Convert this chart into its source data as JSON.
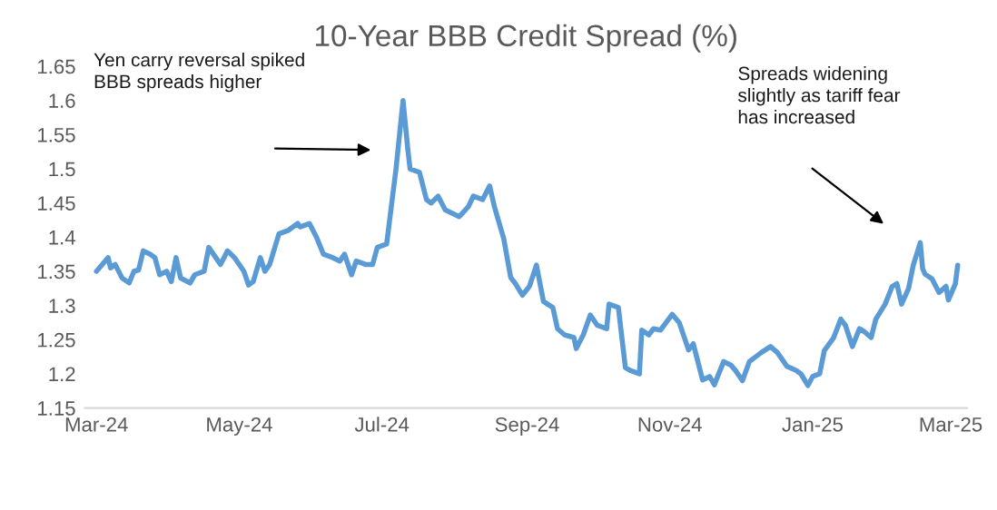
{
  "chart_data": {
    "type": "line",
    "title": "10-Year BBB Credit Spread (%)",
    "series": [
      {
        "color": "#5b9bd5",
        "x": [
          "2024-03-01",
          "2024-03-06",
          "2024-03-07",
          "2024-03-09",
          "2024-03-12",
          "2024-03-15",
          "2024-03-17",
          "2024-03-19",
          "2024-03-21",
          "2024-03-24",
          "2024-03-26",
          "2024-03-28",
          "2024-03-31",
          "2024-04-02",
          "2024-04-04",
          "2024-04-06",
          "2024-04-10",
          "2024-04-12",
          "2024-04-16",
          "2024-04-18",
          "2024-04-21",
          "2024-04-23",
          "2024-04-26",
          "2024-04-29",
          "2024-05-03",
          "2024-05-05",
          "2024-05-07",
          "2024-05-10",
          "2024-05-12",
          "2024-05-14",
          "2024-05-18",
          "2024-05-22",
          "2024-05-26",
          "2024-05-27",
          "2024-05-31",
          "2024-06-03",
          "2024-06-06",
          "2024-06-10",
          "2024-06-13",
          "2024-06-15",
          "2024-06-18",
          "2024-06-20",
          "2024-06-24",
          "2024-06-27",
          "2024-06-29",
          "2024-07-03",
          "2024-07-07",
          "2024-07-10",
          "2024-07-12",
          "2024-07-13",
          "2024-07-17",
          "2024-07-20",
          "2024-07-22",
          "2024-07-25",
          "2024-07-28",
          "2024-07-31",
          "2024-08-03",
          "2024-08-07",
          "2024-08-09",
          "2024-08-13",
          "2024-08-16",
          "2024-08-18",
          "2024-08-22",
          "2024-08-25",
          "2024-08-27",
          "2024-08-30",
          "2024-09-02",
          "2024-09-05",
          "2024-09-08",
          "2024-09-12",
          "2024-09-14",
          "2024-09-17",
          "2024-09-21",
          "2024-09-22",
          "2024-09-25",
          "2024-09-28",
          "2024-10-01",
          "2024-10-05",
          "2024-10-06",
          "2024-10-10",
          "2024-10-13",
          "2024-10-15",
          "2024-10-19",
          "2024-10-20",
          "2024-10-23",
          "2024-10-25",
          "2024-10-28",
          "2024-11-02",
          "2024-11-05",
          "2024-11-09",
          "2024-11-11",
          "2024-11-15",
          "2024-11-18",
          "2024-11-20",
          "2024-11-24",
          "2024-11-27",
          "2024-11-29",
          "2024-12-02",
          "2024-12-05",
          "2024-12-10",
          "2024-12-14",
          "2024-12-17",
          "2024-12-21",
          "2024-12-25",
          "2024-12-27",
          "2024-12-30",
          "2025-01-01",
          "2025-01-04",
          "2025-01-06",
          "2025-01-10",
          "2025-01-13",
          "2025-01-15",
          "2025-01-18",
          "2025-01-21",
          "2025-01-23",
          "2025-01-26",
          "2025-01-28",
          "2025-02-01",
          "2025-02-04",
          "2025-02-06",
          "2025-02-08",
          "2025-02-11",
          "2025-02-13",
          "2025-02-16",
          "2025-02-17",
          "2025-02-18",
          "2025-02-21",
          "2025-02-24",
          "2025-02-27",
          "2025-02-28",
          "2025-03-03",
          "2025-03-04"
        ],
        "values": [
          1.35,
          1.37,
          1.355,
          1.36,
          1.34,
          1.333,
          1.35,
          1.352,
          1.38,
          1.375,
          1.37,
          1.345,
          1.35,
          1.335,
          1.37,
          1.34,
          1.333,
          1.345,
          1.35,
          1.385,
          1.37,
          1.36,
          1.38,
          1.37,
          1.35,
          1.33,
          1.335,
          1.37,
          1.35,
          1.36,
          1.405,
          1.41,
          1.42,
          1.415,
          1.42,
          1.4,
          1.375,
          1.37,
          1.365,
          1.375,
          1.345,
          1.365,
          1.36,
          1.36,
          1.385,
          1.39,
          1.5,
          1.6,
          1.53,
          1.5,
          1.495,
          1.455,
          1.45,
          1.46,
          1.44,
          1.435,
          1.43,
          1.445,
          1.46,
          1.455,
          1.475,
          1.445,
          1.398,
          1.341,
          1.332,
          1.315,
          1.328,
          1.359,
          1.306,
          1.297,
          1.266,
          1.257,
          1.253,
          1.237,
          1.257,
          1.286,
          1.271,
          1.266,
          1.302,
          1.297,
          1.209,
          1.205,
          1.2,
          1.264,
          1.257,
          1.266,
          1.264,
          1.287,
          1.275,
          1.235,
          1.244,
          1.191,
          1.196,
          1.184,
          1.218,
          1.213,
          1.205,
          1.19,
          1.218,
          1.231,
          1.24,
          1.231,
          1.211,
          1.205,
          1.2,
          1.183,
          1.196,
          1.2,
          1.234,
          1.253,
          1.28,
          1.271,
          1.24,
          1.266,
          1.262,
          1.253,
          1.28,
          1.302,
          1.328,
          1.332,
          1.302,
          1.325,
          1.359,
          1.392,
          1.354,
          1.346,
          1.339,
          1.319,
          1.328,
          1.308,
          1.332,
          1.359
        ]
      }
    ],
    "xlim": [
      "2024-02-25",
      "2025-03-08"
    ],
    "xticks": [
      {
        "value": "2024-03-01",
        "label": "Mar-24"
      },
      {
        "value": "2024-05-01",
        "label": "May-24"
      },
      {
        "value": "2024-07-01",
        "label": "Jul-24"
      },
      {
        "value": "2024-09-01",
        "label": "Sep-24"
      },
      {
        "value": "2024-11-01",
        "label": "Nov-24"
      },
      {
        "value": "2025-01-01",
        "label": "Jan-25"
      },
      {
        "value": "2025-03-01",
        "label": "Mar-25"
      }
    ],
    "ylim": [
      1.15,
      1.65
    ],
    "yticks": [
      1.15,
      1.2,
      1.25,
      1.3,
      1.35,
      1.4,
      1.45,
      1.5,
      1.55,
      1.6,
      1.65
    ],
    "grid": false,
    "legend": false,
    "marker": "none",
    "line_style": "solid",
    "annotations": [
      "Yen carry reversal spiked\nBBB spreads higher",
      "Spreads widening\nslightly as tariff fear\nhas increased"
    ]
  }
}
